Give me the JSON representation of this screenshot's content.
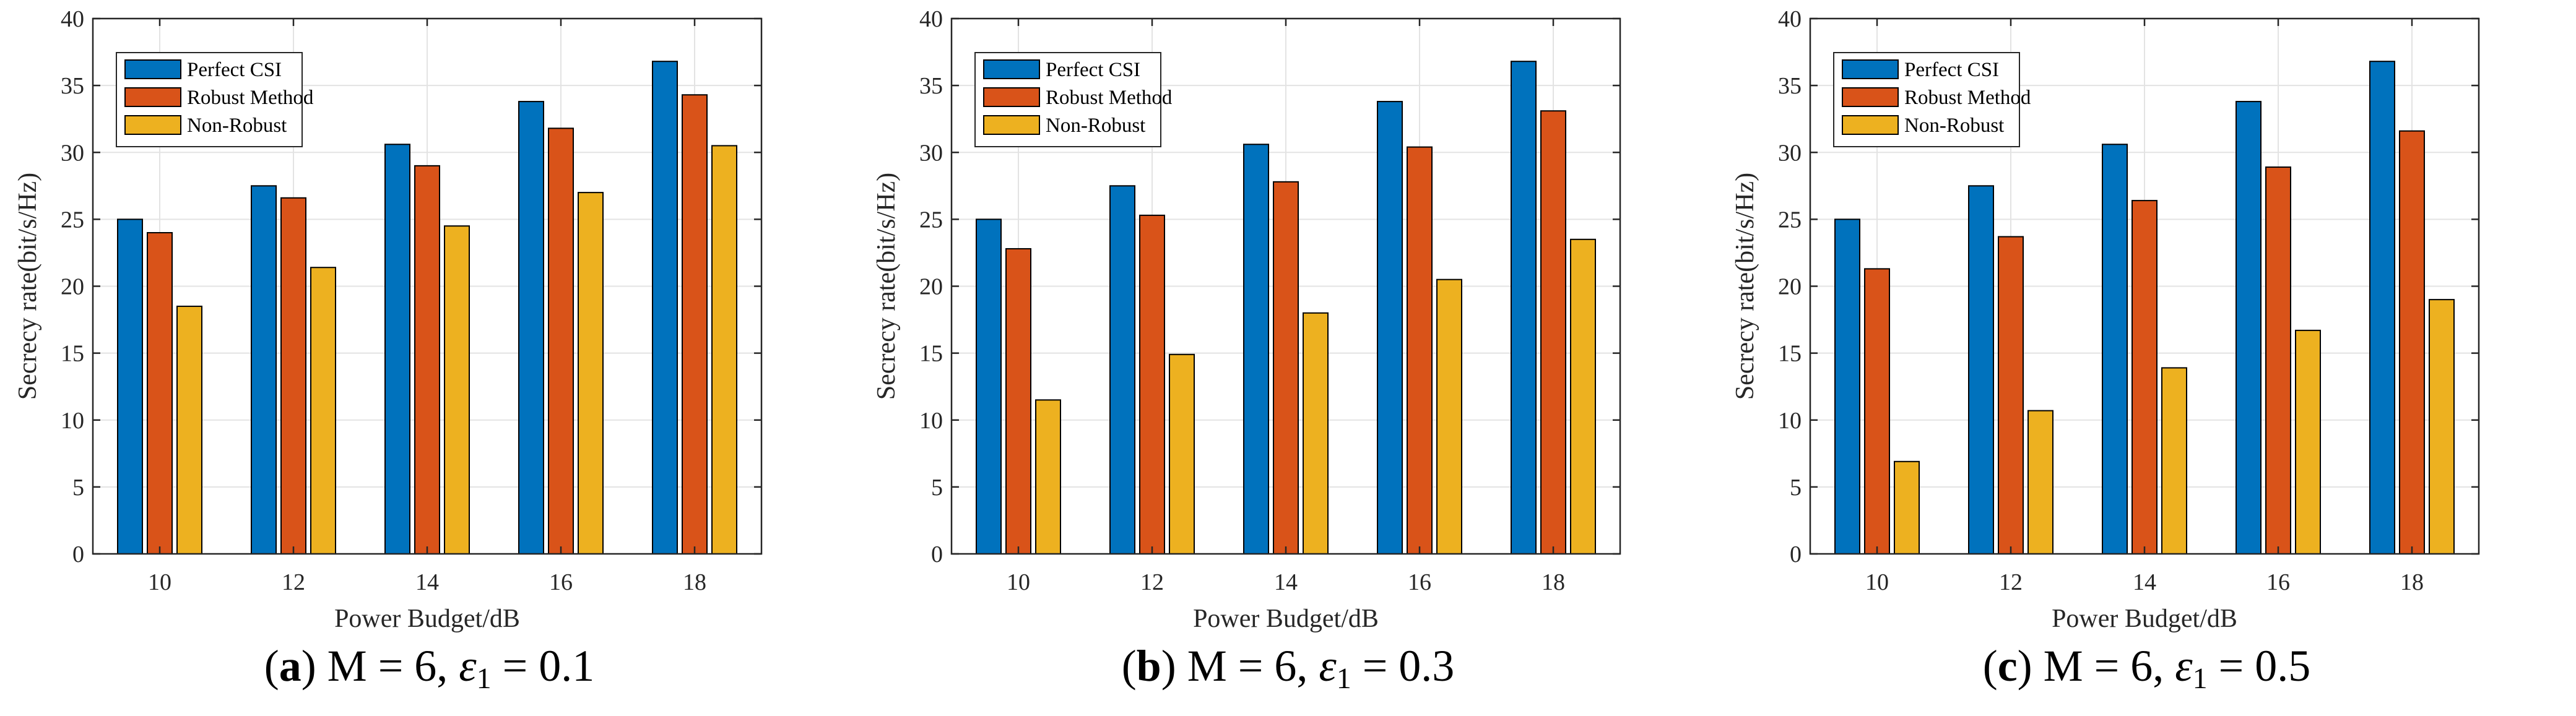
{
  "chart_data": [
    {
      "type": "bar",
      "caption": {
        "label": "a",
        "text": "M = 6, ",
        "eps": "ε",
        "sub": "1",
        "tail": " = 0.1"
      },
      "xlabel": "Power Budget/dB",
      "ylabel": "Secrecy rate(bit/s/Hz)",
      "ylim": [
        0,
        40
      ],
      "yticks": [
        0,
        5,
        10,
        15,
        20,
        25,
        30,
        35,
        40
      ],
      "categories": [
        "10",
        "12",
        "14",
        "16",
        "18"
      ],
      "grid": true,
      "legend_position": "top-left",
      "series": [
        {
          "name": "Perfect CSI",
          "color": "#0072bd",
          "values": [
            25.0,
            27.5,
            30.6,
            33.8,
            36.8
          ]
        },
        {
          "name": "Robust Method",
          "color": "#d95319",
          "values": [
            24.0,
            26.6,
            29.0,
            31.8,
            34.3
          ]
        },
        {
          "name": "Non-Robust",
          "color": "#edb120",
          "values": [
            18.5,
            21.4,
            24.5,
            27.0,
            30.5
          ]
        }
      ]
    },
    {
      "type": "bar",
      "caption": {
        "label": "b",
        "text": "M = 6, ",
        "eps": "ε",
        "sub": "1",
        "tail": " = 0.3"
      },
      "xlabel": "Power Budget/dB",
      "ylabel": "Secrecy rate(bit/s/Hz)",
      "ylim": [
        0,
        40
      ],
      "yticks": [
        0,
        5,
        10,
        15,
        20,
        25,
        30,
        35,
        40
      ],
      "categories": [
        "10",
        "12",
        "14",
        "16",
        "18"
      ],
      "grid": true,
      "legend_position": "top-left",
      "series": [
        {
          "name": "Perfect CSI",
          "color": "#0072bd",
          "values": [
            25.0,
            27.5,
            30.6,
            33.8,
            36.8
          ]
        },
        {
          "name": "Robust Method",
          "color": "#d95319",
          "values": [
            22.8,
            25.3,
            27.8,
            30.4,
            33.1
          ]
        },
        {
          "name": "Non-Robust",
          "color": "#edb120",
          "values": [
            11.5,
            14.9,
            18.0,
            20.5,
            23.5
          ]
        }
      ]
    },
    {
      "type": "bar",
      "caption": {
        "label": "c",
        "text": "M = 6, ",
        "eps": "ε",
        "sub": "1",
        "tail": " = 0.5"
      },
      "xlabel": "Power Budget/dB",
      "ylabel": "Secrecy rate(bit/s/Hz)",
      "ylim": [
        0,
        40
      ],
      "yticks": [
        0,
        5,
        10,
        15,
        20,
        25,
        30,
        35,
        40
      ],
      "categories": [
        "10",
        "12",
        "14",
        "16",
        "18"
      ],
      "grid": true,
      "legend_position": "top-left",
      "series": [
        {
          "name": "Perfect CSI",
          "color": "#0072bd",
          "values": [
            25.0,
            27.5,
            30.6,
            33.8,
            36.8
          ]
        },
        {
          "name": "Robust Method",
          "color": "#d95319",
          "values": [
            21.3,
            23.7,
            26.4,
            28.9,
            31.6
          ]
        },
        {
          "name": "Non-Robust",
          "color": "#edb120",
          "values": [
            6.9,
            10.7,
            13.9,
            16.7,
            19.0
          ]
        }
      ]
    }
  ]
}
